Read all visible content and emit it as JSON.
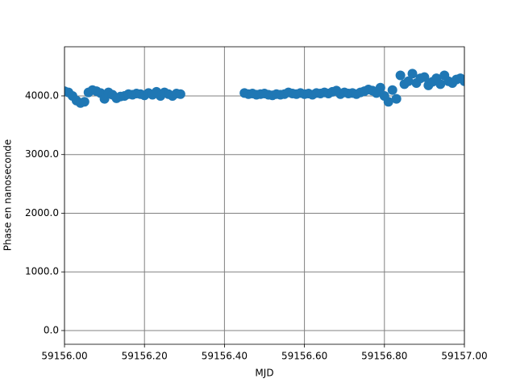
{
  "chart_data": {
    "type": "scatter",
    "xlabel": "MJD",
    "ylabel": "Phase en nanoseconde",
    "series": [
      {
        "color": "#1f77b4",
        "x": [
          59156.0,
          59156.01,
          59156.02,
          59156.03,
          59156.04,
          59156.05,
          59156.06,
          59156.07,
          59156.08,
          59156.09,
          59156.1,
          59156.11,
          59156.12,
          59156.13,
          59156.14,
          59156.15,
          59156.16,
          59156.17,
          59156.18,
          59156.19,
          59156.2,
          59156.21,
          59156.22,
          59156.23,
          59156.24,
          59156.25,
          59156.26,
          59156.27,
          59156.28,
          59156.29,
          59156.45,
          59156.46,
          59156.47,
          59156.48,
          59156.49,
          59156.5,
          59156.51,
          59156.52,
          59156.53,
          59156.54,
          59156.55,
          59156.56,
          59156.57,
          59156.58,
          59156.59,
          59156.6,
          59156.61,
          59156.62,
          59156.63,
          59156.64,
          59156.65,
          59156.66,
          59156.67,
          59156.68,
          59156.69,
          59156.7,
          59156.71,
          59156.72,
          59156.73,
          59156.74,
          59156.75,
          59156.76,
          59156.77,
          59156.78,
          59156.79,
          59156.8,
          59156.81,
          59156.82,
          59156.83,
          59156.84,
          59156.85,
          59156.86,
          59156.87,
          59156.88,
          59156.89,
          59156.9,
          59156.91,
          59156.92,
          59156.93,
          59156.94,
          59156.95,
          59156.96,
          59156.97,
          59156.98,
          59156.99,
          59157.0
        ],
        "values": [
          4080,
          4060,
          4000,
          3920,
          3880,
          3900,
          4060,
          4100,
          4080,
          4050,
          3950,
          4060,
          4020,
          3960,
          3990,
          4000,
          4030,
          4020,
          4040,
          4030,
          4010,
          4050,
          4020,
          4070,
          4000,
          4060,
          4030,
          4000,
          4040,
          4030,
          4050,
          4030,
          4040,
          4020,
          4030,
          4040,
          4020,
          4010,
          4030,
          4020,
          4030,
          4060,
          4040,
          4030,
          4050,
          4030,
          4040,
          4020,
          4050,
          4040,
          4060,
          4040,
          4070,
          4090,
          4030,
          4060,
          4040,
          4050,
          4030,
          4060,
          4080,
          4110,
          4090,
          4050,
          4140,
          4000,
          3900,
          4100,
          3950,
          4350,
          4200,
          4250,
          4380,
          4220,
          4300,
          4320,
          4180,
          4240,
          4300,
          4200,
          4350,
          4250,
          4220,
          4280,
          4300,
          4250
        ]
      }
    ],
    "xlim": [
      59156.0,
      59157.0
    ],
    "xticks": [
      {
        "value": 59156.0,
        "label": "59156.00"
      },
      {
        "value": 59156.2,
        "label": "59156.20"
      },
      {
        "value": 59156.4,
        "label": "59156.40"
      },
      {
        "value": 59156.6,
        "label": "59156.60"
      },
      {
        "value": 59156.8,
        "label": "59156.80"
      },
      {
        "value": 59157.0,
        "label": "59157.00"
      }
    ],
    "ylim": [
      -234,
      4838
    ],
    "yticks": [
      {
        "value": 0,
        "label": "0.0"
      },
      {
        "value": 1000,
        "label": "1000.0"
      },
      {
        "value": 2000,
        "label": "2000.0"
      },
      {
        "value": 3000,
        "label": "3000.0"
      },
      {
        "value": 4000,
        "label": "4000.0"
      }
    ],
    "grid": true
  }
}
